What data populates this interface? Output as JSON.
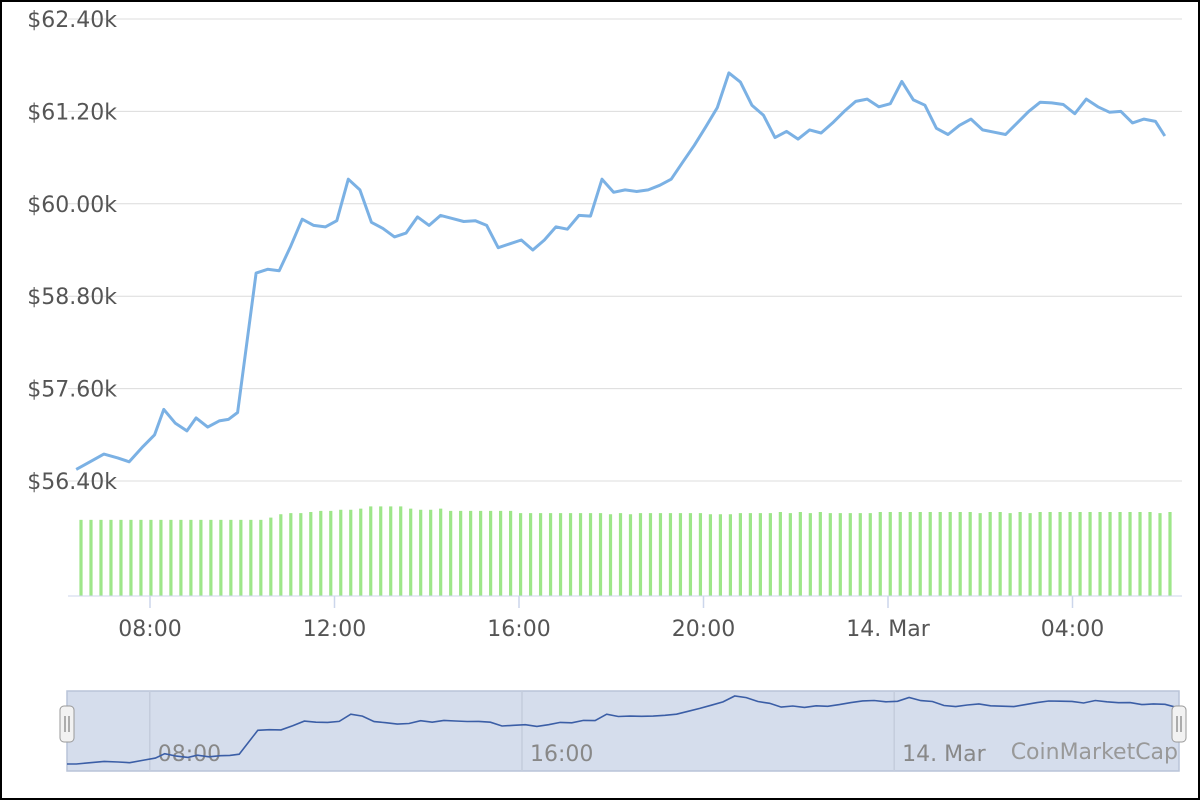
{
  "chart_data": {
    "type": "line",
    "title": "",
    "xlabel": "",
    "ylabel": "",
    "y_ticks": [
      "$56.40k",
      "$57.60k",
      "$58.80k",
      "$60.00k",
      "$61.20k",
      "$62.40k"
    ],
    "y_tick_values": [
      56400,
      57600,
      58800,
      60000,
      61200,
      62400
    ],
    "ylim": [
      56400,
      62400
    ],
    "x_ticks": [
      "08:00",
      "12:00",
      "16:00",
      "20:00",
      "14. Mar",
      "04:00"
    ],
    "x_tick_hours": [
      8,
      12,
      16,
      20,
      24,
      28
    ],
    "xlim_hours": [
      6.2,
      30.1
    ],
    "grid": true,
    "series": [
      {
        "values": [
          [
            6.4,
            56550
          ],
          [
            6.7,
            56650
          ],
          [
            7.0,
            56750
          ],
          [
            7.3,
            56700
          ],
          [
            7.55,
            56650
          ],
          [
            7.85,
            56850
          ],
          [
            8.1,
            57000
          ],
          [
            8.3,
            57330
          ],
          [
            8.55,
            57150
          ],
          [
            8.8,
            57050
          ],
          [
            9.0,
            57220
          ],
          [
            9.25,
            57100
          ],
          [
            9.5,
            57180
          ],
          [
            9.7,
            57200
          ],
          [
            9.9,
            57290
          ],
          [
            10.1,
            58200
          ],
          [
            10.3,
            59100
          ],
          [
            10.55,
            59150
          ],
          [
            10.8,
            59130
          ],
          [
            11.05,
            59450
          ],
          [
            11.3,
            59800
          ],
          [
            11.55,
            59720
          ],
          [
            11.8,
            59700
          ],
          [
            12.05,
            59780
          ],
          [
            12.3,
            60320
          ],
          [
            12.55,
            60180
          ],
          [
            12.8,
            59760
          ],
          [
            13.05,
            59680
          ],
          [
            13.3,
            59570
          ],
          [
            13.55,
            59620
          ],
          [
            13.8,
            59830
          ],
          [
            14.05,
            59720
          ],
          [
            14.3,
            59850
          ],
          [
            14.55,
            59810
          ],
          [
            14.8,
            59770
          ],
          [
            15.05,
            59780
          ],
          [
            15.3,
            59720
          ],
          [
            15.55,
            59430
          ],
          [
            15.8,
            59480
          ],
          [
            16.05,
            59530
          ],
          [
            16.3,
            59400
          ],
          [
            16.55,
            59530
          ],
          [
            16.8,
            59700
          ],
          [
            17.05,
            59670
          ],
          [
            17.3,
            59850
          ],
          [
            17.55,
            59840
          ],
          [
            17.8,
            60320
          ],
          [
            18.05,
            60150
          ],
          [
            18.3,
            60180
          ],
          [
            18.55,
            60160
          ],
          [
            18.8,
            60180
          ],
          [
            19.05,
            60240
          ],
          [
            19.3,
            60320
          ],
          [
            19.55,
            60540
          ],
          [
            19.8,
            60760
          ],
          [
            20.05,
            61000
          ],
          [
            20.3,
            61250
          ],
          [
            20.55,
            61700
          ],
          [
            20.8,
            61580
          ],
          [
            21.05,
            61280
          ],
          [
            21.3,
            61150
          ],
          [
            21.55,
            60860
          ],
          [
            21.8,
            60940
          ],
          [
            22.05,
            60840
          ],
          [
            22.3,
            60960
          ],
          [
            22.55,
            60920
          ],
          [
            22.8,
            61050
          ],
          [
            23.05,
            61200
          ],
          [
            23.3,
            61330
          ],
          [
            23.55,
            61360
          ],
          [
            23.8,
            61260
          ],
          [
            24.05,
            61300
          ],
          [
            24.3,
            61590
          ],
          [
            24.55,
            61350
          ],
          [
            24.8,
            61280
          ],
          [
            25.05,
            60980
          ],
          [
            25.3,
            60900
          ],
          [
            25.55,
            61020
          ],
          [
            25.8,
            61100
          ],
          [
            26.05,
            60960
          ],
          [
            26.3,
            60930
          ],
          [
            26.55,
            60900
          ],
          [
            26.8,
            61050
          ],
          [
            27.05,
            61200
          ],
          [
            27.3,
            61320
          ],
          [
            27.55,
            61310
          ],
          [
            27.8,
            61290
          ],
          [
            28.05,
            61170
          ],
          [
            28.3,
            61360
          ],
          [
            28.55,
            61260
          ],
          [
            28.8,
            61190
          ],
          [
            29.05,
            61200
          ],
          [
            29.3,
            61050
          ],
          [
            29.55,
            61100
          ],
          [
            29.8,
            61070
          ],
          [
            30.0,
            60880
          ]
        ]
      }
    ],
    "volume_bars": [
      0.68,
      0.68,
      0.68,
      0.68,
      0.68,
      0.68,
      0.68,
      0.68,
      0.68,
      0.68,
      0.68,
      0.68,
      0.68,
      0.68,
      0.68,
      0.68,
      0.68,
      0.68,
      0.68,
      0.7,
      0.73,
      0.74,
      0.74,
      0.75,
      0.76,
      0.76,
      0.77,
      0.77,
      0.78,
      0.8,
      0.8,
      0.8,
      0.8,
      0.78,
      0.77,
      0.77,
      0.78,
      0.76,
      0.76,
      0.76,
      0.76,
      0.76,
      0.76,
      0.76,
      0.74,
      0.74,
      0.74,
      0.74,
      0.74,
      0.74,
      0.74,
      0.74,
      0.74,
      0.73,
      0.74,
      0.73,
      0.74,
      0.74,
      0.74,
      0.74,
      0.74,
      0.74,
      0.74,
      0.73,
      0.73,
      0.73,
      0.74,
      0.74,
      0.74,
      0.74,
      0.75,
      0.74,
      0.75,
      0.74,
      0.75,
      0.74,
      0.74,
      0.74,
      0.74,
      0.74,
      0.75,
      0.75,
      0.75,
      0.75,
      0.75,
      0.75,
      0.75,
      0.75,
      0.75,
      0.75,
      0.74,
      0.75,
      0.75,
      0.74,
      0.75,
      0.74,
      0.75,
      0.75,
      0.75,
      0.75,
      0.75,
      0.75,
      0.75,
      0.75,
      0.75,
      0.75,
      0.75,
      0.75,
      0.74,
      0.75
    ],
    "navigator": {
      "x_ticks": [
        "08:00",
        "16:00",
        "14. Mar"
      ],
      "x_tick_hours": [
        8,
        16,
        24
      ]
    },
    "watermark": "CoinMarketCap",
    "colors": {
      "line": "#7bb1e4",
      "volume": "#9ee68a",
      "grid": "#dcdcdc",
      "navigator_fill": "#d5ddec",
      "navigator_line": "#3b5ea6"
    }
  }
}
